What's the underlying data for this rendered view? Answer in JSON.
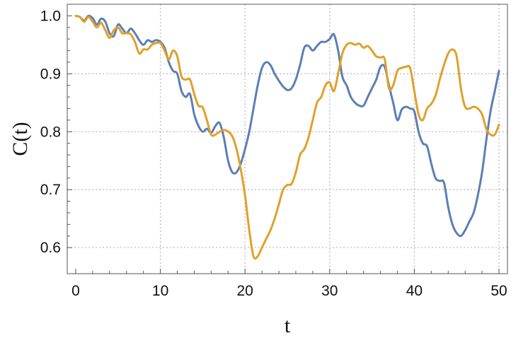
{
  "chart_data": {
    "type": "line",
    "title": "",
    "xlabel": "t",
    "ylabel": "C(t)",
    "xlim": [
      -1,
      51
    ],
    "ylim": [
      0.555,
      1.02
    ],
    "grid": true,
    "x_ticks": [
      0,
      10,
      20,
      30,
      40,
      50
    ],
    "x_tick_labels": [
      "0",
      "10",
      "20",
      "30",
      "40",
      "50"
    ],
    "y_ticks": [
      0.6,
      0.7,
      0.8,
      0.9,
      1.0
    ],
    "y_tick_labels": [
      "0.6",
      "0.7",
      "0.8",
      "0.9",
      "1.0"
    ],
    "series": [
      {
        "color": "#5b7fb4",
        "x": [
          0,
          0.5,
          1,
          1.5,
          2,
          2.5,
          3,
          3.5,
          4,
          4.5,
          5,
          5.5,
          6,
          6.5,
          7,
          7.5,
          8,
          8.5,
          9,
          9.5,
          10,
          10.5,
          11,
          11.5,
          12,
          12.5,
          13,
          13.5,
          14,
          14.5,
          15,
          15.5,
          16,
          16.5,
          17,
          17.5,
          18,
          18.5,
          19,
          19.5,
          20,
          20.5,
          21,
          21.5,
          22,
          22.5,
          23,
          23.5,
          24,
          24.5,
          25,
          25.5,
          26,
          26.5,
          27,
          27.5,
          28,
          28.5,
          29,
          29.5,
          30,
          30.5,
          31,
          31.5,
          32,
          32.5,
          33,
          33.5,
          34,
          34.5,
          35,
          35.5,
          36,
          36.5,
          37,
          37.5,
          38,
          38.5,
          39,
          39.5,
          40,
          40.5,
          41,
          41.5,
          42,
          42.5,
          43,
          43.5,
          44,
          44.5,
          45,
          45.5,
          46,
          46.5,
          47,
          47.5,
          48,
          48.5,
          49,
          49.5,
          50
        ],
        "values": [
          1.0,
          0.998,
          0.992,
          1.0,
          0.996,
          0.985,
          0.995,
          0.99,
          0.97,
          0.965,
          0.985,
          0.978,
          0.97,
          0.978,
          0.97,
          0.958,
          0.95,
          0.958,
          0.955,
          0.958,
          0.955,
          0.945,
          0.92,
          0.905,
          0.9,
          0.87,
          0.86,
          0.865,
          0.83,
          0.81,
          0.8,
          0.805,
          0.798,
          0.81,
          0.815,
          0.79,
          0.75,
          0.73,
          0.73,
          0.745,
          0.77,
          0.8,
          0.84,
          0.88,
          0.91,
          0.92,
          0.915,
          0.9,
          0.888,
          0.878,
          0.872,
          0.875,
          0.89,
          0.915,
          0.945,
          0.948,
          0.94,
          0.948,
          0.955,
          0.955,
          0.96,
          0.968,
          0.94,
          0.895,
          0.88,
          0.86,
          0.85,
          0.845,
          0.845,
          0.86,
          0.875,
          0.89,
          0.912,
          0.912,
          0.88,
          0.85,
          0.82,
          0.838,
          0.843,
          0.84,
          0.835,
          0.8,
          0.78,
          0.775,
          0.745,
          0.72,
          0.715,
          0.712,
          0.67,
          0.64,
          0.625,
          0.62,
          0.63,
          0.645,
          0.66,
          0.69,
          0.73,
          0.785,
          0.835,
          0.87,
          0.905
        ]
      },
      {
        "color": "#e0a02a",
        "x": [
          0,
          0.5,
          1,
          1.5,
          2,
          2.5,
          3,
          3.5,
          4,
          4.5,
          5,
          5.5,
          6,
          6.5,
          7,
          7.5,
          8,
          8.5,
          9,
          9.5,
          10,
          10.5,
          11,
          11.5,
          12,
          12.5,
          13,
          13.5,
          14,
          14.5,
          15,
          15.5,
          16,
          16.5,
          17,
          17.5,
          18,
          18.5,
          19,
          19.5,
          20,
          20.5,
          21,
          21.5,
          22,
          22.5,
          23,
          23.5,
          24,
          24.5,
          25,
          25.5,
          26,
          26.5,
          27,
          27.5,
          28,
          28.5,
          29,
          29.5,
          30,
          30.5,
          31,
          31.5,
          32,
          32.5,
          33,
          33.5,
          34,
          34.5,
          35,
          35.5,
          36,
          36.5,
          37,
          37.5,
          38,
          38.5,
          39,
          39.5,
          40,
          40.5,
          41,
          41.5,
          42,
          42.5,
          43,
          43.5,
          44,
          44.5,
          45,
          45.5,
          46,
          46.5,
          47,
          47.5,
          48,
          48.5,
          49,
          49.5,
          50
        ],
        "values": [
          1.0,
          0.998,
          0.99,
          0.998,
          0.99,
          0.98,
          0.988,
          0.975,
          0.962,
          0.975,
          0.98,
          0.97,
          0.97,
          0.968,
          0.955,
          0.935,
          0.942,
          0.942,
          0.95,
          0.953,
          0.953,
          0.94,
          0.925,
          0.94,
          0.93,
          0.895,
          0.89,
          0.89,
          0.865,
          0.845,
          0.842,
          0.82,
          0.795,
          0.795,
          0.8,
          0.803,
          0.8,
          0.792,
          0.77,
          0.735,
          0.69,
          0.63,
          0.585,
          0.585,
          0.6,
          0.615,
          0.63,
          0.65,
          0.675,
          0.7,
          0.708,
          0.71,
          0.73,
          0.76,
          0.77,
          0.79,
          0.82,
          0.85,
          0.86,
          0.88,
          0.885,
          0.87,
          0.9,
          0.935,
          0.95,
          0.953,
          0.95,
          0.952,
          0.945,
          0.948,
          0.94,
          0.93,
          0.928,
          0.925,
          0.875,
          0.88,
          0.905,
          0.91,
          0.912,
          0.91,
          0.87,
          0.83,
          0.82,
          0.84,
          0.848,
          0.862,
          0.89,
          0.915,
          0.935,
          0.942,
          0.93,
          0.875,
          0.843,
          0.84,
          0.843,
          0.84,
          0.83,
          0.805,
          0.795,
          0.795,
          0.812
        ]
      }
    ]
  }
}
